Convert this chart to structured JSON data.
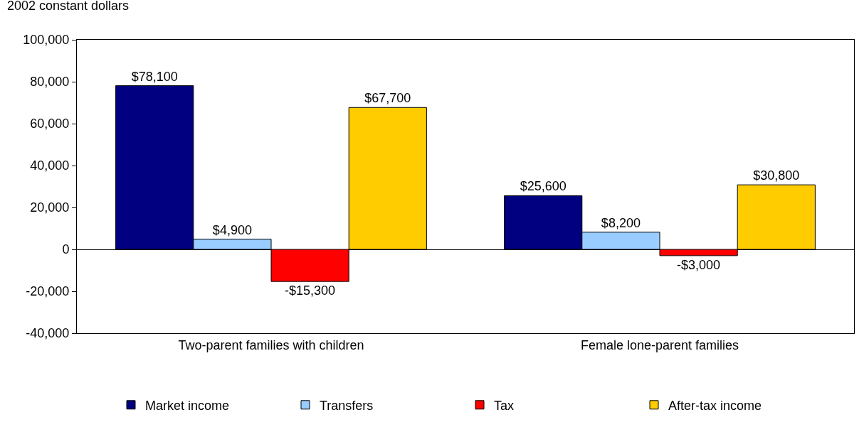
{
  "chart_data": {
    "type": "bar",
    "ylabel": "2002 constant dollars",
    "categories": [
      "Two-parent families with children",
      "Female lone-parent families"
    ],
    "series": [
      {
        "name": "Market income",
        "color": "#000080",
        "values": [
          78100,
          25600
        ],
        "value_labels": [
          "$78,100",
          "$25,600"
        ]
      },
      {
        "name": "Transfers",
        "color": "#99ccff",
        "values": [
          4900,
          8200
        ],
        "value_labels": [
          "$4,900",
          "$8,200"
        ]
      },
      {
        "name": "Tax",
        "color": "#ff0000",
        "values": [
          -15300,
          -3000
        ],
        "value_labels": [
          "-$15,300",
          "-$3,000"
        ]
      },
      {
        "name": "After-tax income",
        "color": "#ffcc00",
        "values": [
          67700,
          30800
        ],
        "value_labels": [
          "$67,700",
          "$30,800"
        ]
      }
    ],
    "ylim": [
      -40000,
      100000
    ],
    "yticks": [
      {
        "value": -40000,
        "label": "-40,000"
      },
      {
        "value": -20000,
        "label": "-20,000"
      },
      0,
      {
        "value": 20000,
        "label": "20,000"
      },
      {
        "value": 40000,
        "label": "40,000"
      },
      {
        "value": 60000,
        "label": "60,000"
      },
      {
        "value": 80000,
        "label": "80,000"
      },
      {
        "value": 100000,
        "label": "100,000"
      }
    ],
    "legend": "bottom"
  }
}
